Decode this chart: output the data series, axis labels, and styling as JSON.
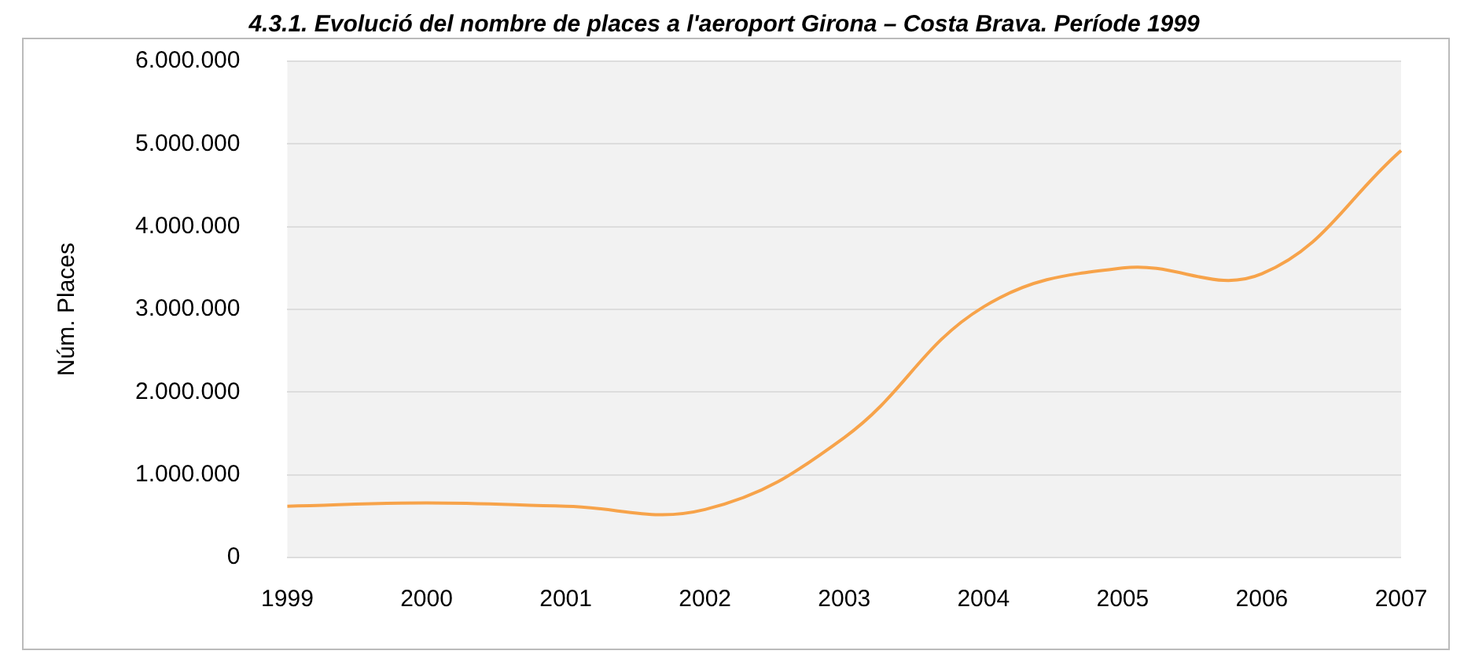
{
  "chart_data": {
    "type": "line",
    "title": "4.3.1. Evolució del nombre de places a l'aeroport Girona – Costa Brava. Període 1999",
    "ylabel": "Núm. Places",
    "categories": [
      "1999",
      "2000",
      "2001",
      "2002",
      "2003",
      "2004",
      "2005",
      "2006",
      "2007"
    ],
    "series": [
      {
        "color": "#f7a34a",
        "values": [
          620000,
          660000,
          620000,
          580000,
          1450000,
          3030000,
          3500000,
          3430000,
          4920000
        ]
      }
    ],
    "ylim": [
      0,
      6000000
    ],
    "yticks": [
      {
        "value": 0,
        "label": "0"
      },
      {
        "value": 1000000,
        "label": "1.000.000"
      },
      {
        "value": 2000000,
        "label": "2.000.000"
      },
      {
        "value": 3000000,
        "label": "3.000.000"
      },
      {
        "value": 4000000,
        "label": "4.000.000"
      },
      {
        "value": 5000000,
        "label": "5.000.000"
      },
      {
        "value": 6000000,
        "label": "6.000.000"
      }
    ],
    "grid": "y",
    "legend": false,
    "marker": "none",
    "line_style": "solid"
  }
}
